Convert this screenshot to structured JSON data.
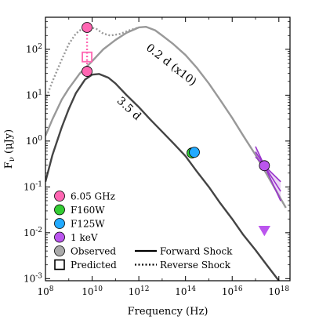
{
  "chart_data": {
    "type": "line",
    "xlabel": "Frequency (Hz)",
    "ylabel": "Fν (μJy)",
    "xscale": "log",
    "yscale": "log",
    "xlim": [
      100000000.0,
      3e+18
    ],
    "ylim": [
      0.0009,
      500
    ],
    "x_ticks": [
      {
        "value": 100000000.0,
        "label": "10^8"
      },
      {
        "value": 10000000000.0,
        "label": "10^10"
      },
      {
        "value": 1000000000000.0,
        "label": "10^12"
      },
      {
        "value": 100000000000000.0,
        "label": "10^14"
      },
      {
        "value": 1e+16,
        "label": "10^16"
      },
      {
        "value": 1e+18,
        "label": "10^18"
      }
    ],
    "y_ticks": [
      {
        "value": 0.001,
        "label": "10^-3"
      },
      {
        "value": 0.01,
        "label": "10^-2"
      },
      {
        "value": 0.1,
        "label": "10^-1"
      },
      {
        "value": 1,
        "label": "10^0"
      },
      {
        "value": 10,
        "label": "10^1"
      },
      {
        "value": 100,
        "label": "10^2"
      }
    ],
    "curve_labels": [
      {
        "text": "0.2 d (x10)",
        "x": 20000000000000.0,
        "y": 40,
        "angle": 38
      },
      {
        "text": "3.5 d",
        "x": 300000000000.0,
        "y": 4.5,
        "angle": 43
      }
    ],
    "series": [
      {
        "curve": "0.2 d forward shock",
        "style": "solid",
        "color": "#999999",
        "points": [
          [
            100000000.0,
            1.3
          ],
          [
            200000000.0,
            3
          ],
          [
            500000000.0,
            8
          ],
          [
            1000000000.0,
            14
          ],
          [
            3000000000.0,
            30
          ],
          [
            10000000000.0,
            55
          ],
          [
            30000000000.0,
            100
          ],
          [
            100000000000.0,
            160
          ],
          [
            300000000000.0,
            230
          ],
          [
            1000000000000.0,
            300
          ],
          [
            2000000000000.0,
            310
          ],
          [
            5000000000000.0,
            260
          ],
          [
            10000000000000.0,
            200
          ],
          [
            30000000000000.0,
            130
          ],
          [
            100000000000000.0,
            75
          ],
          [
            300000000000000.0,
            40
          ],
          [
            1000000000000000.0,
            18
          ],
          [
            3000000000000000.0,
            8
          ],
          [
            1e+16,
            3.2
          ],
          [
            3e+16,
            1.3
          ],
          [
            1e+17,
            0.5
          ],
          [
            3e+17,
            0.19
          ],
          [
            1e+18,
            0.065
          ],
          [
            2e+18,
            0.035
          ]
        ]
      },
      {
        "curve": "0.2 d reverse shock",
        "style": "dotted",
        "color": "#999999",
        "points": [
          [
            100000000.0,
            8
          ],
          [
            200000000.0,
            20
          ],
          [
            500000000.0,
            60
          ],
          [
            1000000000.0,
            130
          ],
          [
            2000000000.0,
            220
          ],
          [
            4000000000.0,
            290
          ],
          [
            8000000000.0,
            305
          ],
          [
            15000000000.0,
            280
          ],
          [
            30000000000.0,
            220
          ],
          [
            60000000000.0,
            200
          ],
          [
            150000000000.0,
            215
          ],
          [
            400000000000.0,
            260
          ],
          [
            1000000000000.0,
            300
          ]
        ]
      },
      {
        "curve": "3.5 d forward shock",
        "style": "solid",
        "color": "#444444",
        "points": [
          [
            100000000.0,
            0.13
          ],
          [
            200000000.0,
            0.5
          ],
          [
            500000000.0,
            2
          ],
          [
            1000000000.0,
            5
          ],
          [
            2000000000.0,
            11
          ],
          [
            5000000000.0,
            22
          ],
          [
            10000000000.0,
            28
          ],
          [
            20000000000.0,
            29
          ],
          [
            50000000000.0,
            24
          ],
          [
            100000000000.0,
            18
          ],
          [
            300000000000.0,
            10
          ],
          [
            1000000000000.0,
            5.5
          ],
          [
            3000000000000.0,
            3
          ],
          [
            10000000000000.0,
            1.6
          ],
          [
            30000000000000.0,
            0.9
          ],
          [
            100000000000000.0,
            0.47
          ],
          [
            300000000000000.0,
            0.22
          ],
          [
            1000000000000000.0,
            0.1
          ],
          [
            3000000000000000.0,
            0.045
          ],
          [
            1e+16,
            0.02
          ],
          [
            3e+16,
            0.009
          ],
          [
            1e+17,
            0.0042
          ],
          [
            3e+17,
            0.002
          ],
          [
            1e+18,
            0.0009
          ]
        ]
      }
    ],
    "points": [
      {
        "band": "6.05 GHz",
        "kind": "observed",
        "x": 6050000000.0,
        "y": 300,
        "color": "#ff66b2"
      },
      {
        "band": "6.05 GHz",
        "kind": "observed",
        "x": 6050000000.0,
        "y": 33,
        "color": "#ff66b2"
      },
      {
        "band": "6.05 GHz",
        "kind": "predicted",
        "x": 6050000000.0,
        "y": 68,
        "color": "#ff66b2"
      },
      {
        "band": "F160W",
        "kind": "observed",
        "x": 190000000000000.0,
        "y": 0.55,
        "color": "#33cc33"
      },
      {
        "band": "F125W",
        "kind": "observed",
        "x": 240000000000000.0,
        "y": 0.57,
        "color": "#22aaff"
      },
      {
        "band": "1 keV",
        "kind": "observed",
        "x": 2.4e+17,
        "y": 0.29,
        "color": "#bb55ee"
      },
      {
        "band": "1 keV",
        "kind": "upper-limit",
        "x": 2.4e+17,
        "y": 0.011,
        "color": "#bb55ee"
      }
    ],
    "xray_spectrum": {
      "x_range": [
        1e+17,
        1.2e+18
      ],
      "pivot": [
        2.4e+17,
        0.29
      ],
      "slopes": [
        -0.5,
        -0.8,
        -1.1
      ],
      "color": "#9933cc"
    },
    "radio_link": {
      "x": 6050000000.0,
      "y_range": [
        33,
        300
      ],
      "style": "dotted",
      "color": "#ff66b2"
    },
    "legend": {
      "placement": "lower-left",
      "entries": [
        {
          "label": "6.05 GHz",
          "marker": "circle",
          "color": "#ff66b2"
        },
        {
          "label": "F160W",
          "marker": "circle",
          "color": "#33cc33"
        },
        {
          "label": "F125W",
          "marker": "circle",
          "color": "#22aaff"
        },
        {
          "label": "1 keV",
          "marker": "circle",
          "color": "#bb55ee"
        },
        {
          "label": "Observed",
          "marker": "circle",
          "color": "#aaaaaa"
        },
        {
          "label": "Predicted",
          "marker": "square",
          "color": "#ffffff"
        }
      ],
      "line_entries": [
        {
          "label": "Forward Shock",
          "style": "solid"
        },
        {
          "label": "Reverse Shock",
          "style": "dotted"
        }
      ]
    },
    "grid": false
  }
}
